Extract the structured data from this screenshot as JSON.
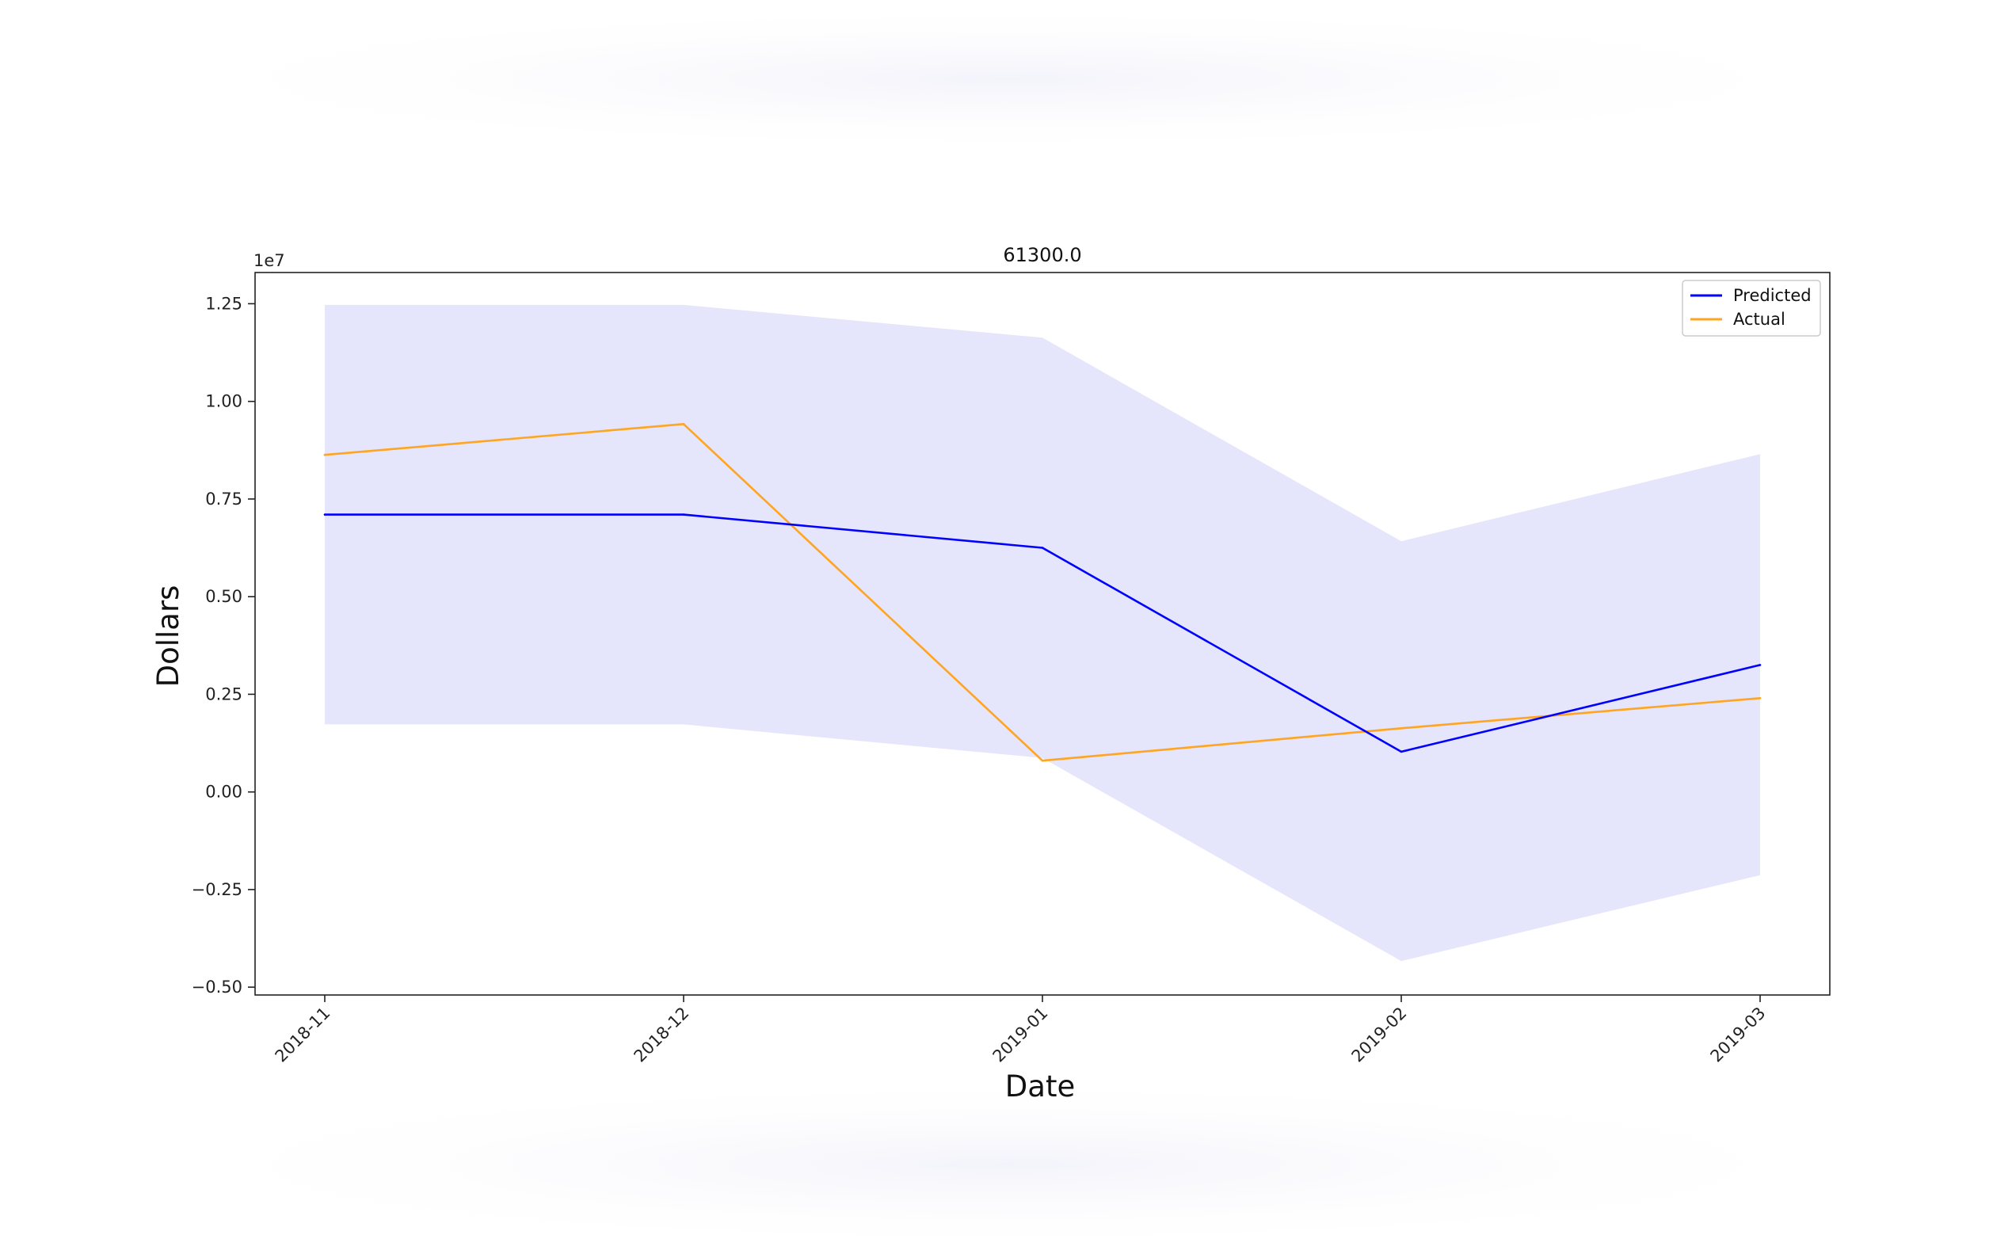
{
  "chart_data": {
    "type": "line",
    "title": "61300.0",
    "xlabel": "Date",
    "ylabel": "Dollars",
    "y_offset_label": "1e7",
    "x": [
      "2018-11",
      "2018-12",
      "2019-01",
      "2019-02",
      "2019-03"
    ],
    "yticks": [
      -0.5,
      -0.25,
      0.0,
      0.25,
      0.5,
      0.75,
      1.0,
      1.25
    ],
    "ytick_labels": [
      "−0.50",
      "−0.25",
      "0.00",
      "0.25",
      "0.50",
      "0.75",
      "1.00",
      "1.25"
    ],
    "ylim": [
      -0.52,
      1.33
    ],
    "grid": false,
    "legend_position": "top-right",
    "series": [
      {
        "name": "Predicted",
        "color": "#0000ff",
        "values": [
          0.71,
          0.71,
          0.625,
          0.103,
          0.325
        ]
      },
      {
        "name": "Actual",
        "color": "#ffa520",
        "values": [
          0.863,
          0.942,
          0.08,
          0.163,
          0.24
        ]
      }
    ],
    "band": {
      "color": "#e5e5fb",
      "upper": [
        1.247,
        1.247,
        1.163,
        0.642,
        0.865
      ],
      "lower": [
        0.173,
        0.173,
        0.087,
        -0.433,
        -0.213
      ]
    }
  }
}
